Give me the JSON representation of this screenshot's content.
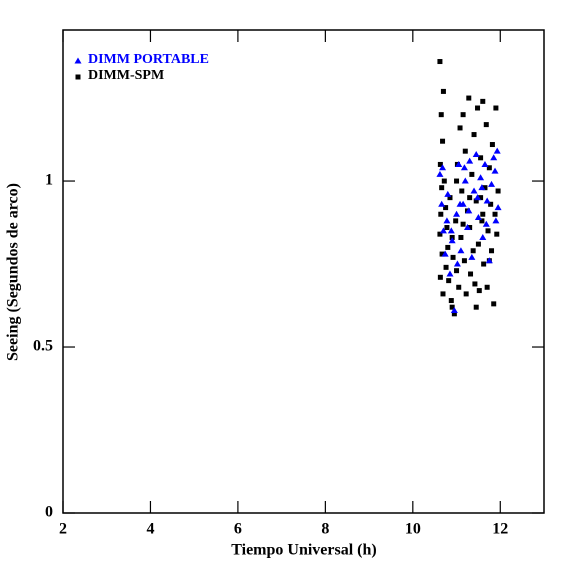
{
  "chart_data": {
    "type": "scatter",
    "xlabel": "Tiempo Universal (h)",
    "ylabel": "Seeing (Segundos de arco)",
    "xlim": [
      2,
      13
    ],
    "xticks": [
      2,
      4,
      6,
      8,
      10,
      12
    ],
    "ylim": [
      0,
      1.455
    ],
    "yticks": [
      0,
      0.5,
      1
    ],
    "legend": "upper left",
    "series": [
      {
        "name": "DIMM PORTABLE",
        "color": "#0000ff",
        "marker": "triangle",
        "x": [
          10.62,
          10.66,
          10.7,
          10.74,
          10.8,
          10.85,
          10.9,
          10.95,
          11.0,
          11.05,
          11.1,
          11.15,
          11.2,
          11.25,
          11.3,
          11.35,
          11.4,
          11.45,
          11.5,
          11.55,
          11.6,
          11.65,
          11.7,
          11.75,
          11.8,
          11.85,
          11.9,
          11.93,
          11.95,
          10.68,
          10.88,
          11.08,
          11.28,
          11.48,
          11.68,
          11.88,
          10.78,
          11.18,
          11.58,
          11.02
        ],
        "y": [
          1.02,
          0.93,
          0.85,
          0.78,
          0.96,
          0.72,
          0.82,
          0.61,
          0.9,
          1.05,
          0.79,
          0.93,
          1.0,
          0.86,
          1.06,
          0.77,
          0.97,
          1.08,
          0.89,
          1.01,
          0.83,
          1.05,
          0.94,
          0.76,
          0.99,
          1.07,
          0.88,
          1.09,
          0.92,
          1.04,
          0.85,
          0.93,
          0.91,
          0.95,
          0.87,
          1.03,
          0.88,
          1.04,
          0.98,
          0.75
        ]
      },
      {
        "name": "DIMM-SPM",
        "color": "#000000",
        "marker": "square",
        "x": [
          10.62,
          10.7,
          10.65,
          10.68,
          10.63,
          10.66,
          10.64,
          10.62,
          10.67,
          10.63,
          10.69,
          10.75,
          10.78,
          10.8,
          10.76,
          10.82,
          10.85,
          10.88,
          10.9,
          10.95,
          10.92,
          10.98,
          11.0,
          11.02,
          11.05,
          11.08,
          11.1,
          11.12,
          11.15,
          11.18,
          11.2,
          11.22,
          11.25,
          11.28,
          11.3,
          11.32,
          11.35,
          11.38,
          11.4,
          11.42,
          11.45,
          11.48,
          11.5,
          11.52,
          11.55,
          11.58,
          11.6,
          11.62,
          11.65,
          11.68,
          11.7,
          11.72,
          11.75,
          11.78,
          11.8,
          11.82,
          11.85,
          11.88,
          11.9,
          11.92,
          11.95,
          11.0,
          11.3,
          11.6,
          10.9,
          11.45,
          11.15,
          11.75,
          10.72,
          11.55
        ],
        "y": [
          1.36,
          1.27,
          1.2,
          1.12,
          1.05,
          0.98,
          0.9,
          0.84,
          0.78,
          0.71,
          0.66,
          0.92,
          0.86,
          0.8,
          0.74,
          0.7,
          0.95,
          0.64,
          0.62,
          0.6,
          0.77,
          0.88,
          0.73,
          1.05,
          0.68,
          1.16,
          0.83,
          0.97,
          1.2,
          0.76,
          1.09,
          0.66,
          0.91,
          1.25,
          0.86,
          0.72,
          1.02,
          0.79,
          1.14,
          0.69,
          0.94,
          1.22,
          0.81,
          0.67,
          1.07,
          0.88,
          1.24,
          0.75,
          0.98,
          1.17,
          0.68,
          0.85,
          1.04,
          0.93,
          0.79,
          1.11,
          0.63,
          0.9,
          1.22,
          0.84,
          0.97,
          1.0,
          0.95,
          0.9,
          0.83,
          0.62,
          0.87,
          0.76,
          1.0,
          0.95
        ]
      }
    ]
  }
}
